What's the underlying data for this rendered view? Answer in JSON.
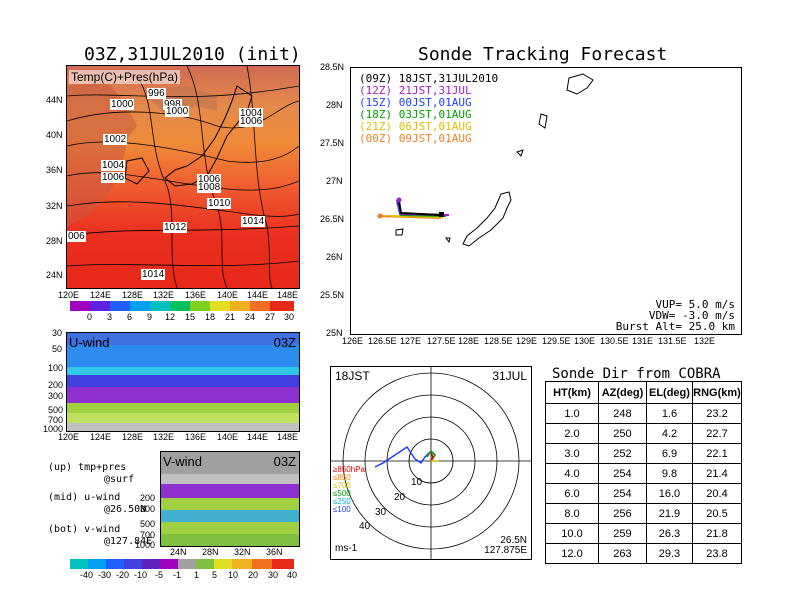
{
  "left": {
    "title": "03Z,31JUL2010 (init)",
    "map_label": "Temp(C)+Pres(hPa)",
    "lat_ticks": [
      "44N",
      "40N",
      "36N",
      "32N",
      "28N",
      "24N"
    ],
    "lon_ticks": [
      "120E",
      "124E",
      "128E",
      "132E",
      "136E",
      "140E",
      "144E",
      "148E"
    ],
    "isobars": [
      "996",
      "998",
      "1000",
      "1000",
      "1004",
      "1006",
      "1002",
      "1004",
      "1006",
      "1006",
      "1008",
      "1010",
      "1014",
      "1012",
      "1014",
      "006"
    ],
    "temp_cbar": [
      "0",
      "3",
      "6",
      "9",
      "12",
      "15",
      "18",
      "21",
      "24",
      "27",
      "30"
    ],
    "uwind": {
      "label": "U-wind",
      "time": "03Z",
      "y_ticks": [
        "30",
        "50",
        "100",
        "200",
        "300",
        "500",
        "700",
        "1000"
      ],
      "x_ticks": [
        "120E",
        "124E",
        "128E",
        "132E",
        "136E",
        "140E",
        "144E",
        "148E"
      ]
    },
    "vwind": {
      "label": "V-wind",
      "time": "03Z",
      "y_ticks": [
        "200",
        "300",
        "500",
        "700",
        "1000"
      ],
      "x_ticks": [
        "24N",
        "28N",
        "32N",
        "36N"
      ]
    },
    "notes": [
      {
        "a": "(up) tmp+pres",
        "b": "@surf"
      },
      {
        "a": "(mid) u-wind",
        "b": "@26.50N"
      },
      {
        "a": "(bot) v-wind",
        "b": "@127.84E"
      }
    ],
    "wind_cbar": [
      "-40",
      "-30",
      "-20",
      "-10",
      "-5",
      "-1",
      "1",
      "5",
      "10",
      "20",
      "30",
      "40"
    ]
  },
  "tracking": {
    "title": "Sonde Tracking Forecast",
    "lat_ticks": [
      "28.5N",
      "28N",
      "27.5N",
      "27N",
      "26.5N",
      "26N",
      "25.5N",
      "25N"
    ],
    "lon_ticks": [
      "126E",
      "126.5E",
      "127E",
      "127.5E",
      "128E",
      "128.5E",
      "129E",
      "129.5E",
      "130E",
      "130.5E",
      "131E",
      "131.5E",
      "132E"
    ],
    "legend": [
      {
        "text": "(09Z)  18JST,31JUL2010",
        "color": "#000000"
      },
      {
        "text": "(12Z)  21JST,31JUL",
        "color": "#a020c0"
      },
      {
        "text": "(15Z)  00JST,01AUG",
        "color": "#2040ff"
      },
      {
        "text": "(18Z)  03JST,01AUG",
        "color": "#00a000"
      },
      {
        "text": "(21Z)  06JST,01AUG",
        "color": "#e0c000"
      },
      {
        "text": "(00Z)  09JST,01AUG",
        "color": "#f08020"
      }
    ],
    "params": [
      "VUP= 5.0 m/s",
      "VDW= -3.0 m/s",
      "Burst Alt= 25.0 km"
    ]
  },
  "polar": {
    "time": "18JST",
    "date": "31JUL",
    "levels": [
      {
        "text": "≥850hPa",
        "color": "#e00000"
      },
      {
        "text": "≤850",
        "color": "#ff8000"
      },
      {
        "text": "≤700",
        "color": "#d0c000"
      },
      {
        "text": "≤500",
        "color": "#00a000"
      },
      {
        "text": "≤250",
        "color": "#00b0d0"
      },
      {
        "text": "≤100",
        "color": "#2040ff"
      }
    ],
    "ring_labels": [
      "10",
      "20",
      "30",
      "40"
    ],
    "unit": "ms-1",
    "loc1": "26.5N",
    "loc2": "127.875E"
  },
  "chart_data": {
    "type": "table",
    "title": "Sonde Dir from COBRA",
    "columns": [
      "HT(km)",
      "AZ(deg)",
      "EL(deg)",
      "RNG(km)"
    ],
    "rows": [
      [
        "1.0",
        "248",
        "1.6",
        "23.2"
      ],
      [
        "2.0",
        "250",
        "4.2",
        "22.7"
      ],
      [
        "3.0",
        "252",
        "6.9",
        "22.1"
      ],
      [
        "4.0",
        "254",
        "9.8",
        "21.4"
      ],
      [
        "6.0",
        "254",
        "16.0",
        "20.4"
      ],
      [
        "8.0",
        "256",
        "21.9",
        "20.5"
      ],
      [
        "10.0",
        "259",
        "26.3",
        "21.8"
      ],
      [
        "12.0",
        "263",
        "29.3",
        "23.8"
      ]
    ]
  }
}
